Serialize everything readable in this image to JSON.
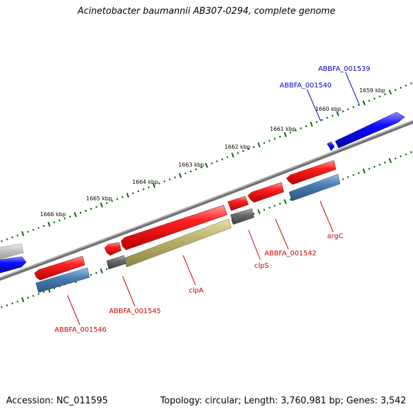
{
  "title": "Acinetobacter baumannii AB307-0294, complete genome",
  "footer": {
    "accession": "Accession: NC_011595",
    "summary": "Topology: circular; Length: 3,760,981 bp; Genes: 3,542"
  },
  "colors": {
    "backbone": "#808080",
    "tick": "#006600",
    "forward_cds": "#ff0000",
    "blue_cds": "#0000ff",
    "pseudo_gray": "#666666",
    "light_gray": "#bbbbbb",
    "steel_blue": "#4477aa",
    "olive": "#bbb066",
    "label_red": "#cc0000",
    "label_blue": "#0000cc"
  },
  "tick_labels": [
    "1659 kbp",
    "1660 kbp",
    "1661 kbp",
    "1662 kbp",
    "1663 kbp",
    "1664 kbp",
    "1665 kbp",
    "1666 kbp"
  ],
  "gene_labels": {
    "abbfa_001539": "ABBFA_001539",
    "abbfa_001540": "ABBFA_001540",
    "argc": "argC",
    "abbfa_001542": "ABBFA_001542",
    "clps": "clpS",
    "clpa": "clpA",
    "abbfa_001545": "ABBFA_001545",
    "abbfa_001546": "ABBFA_001546"
  }
}
